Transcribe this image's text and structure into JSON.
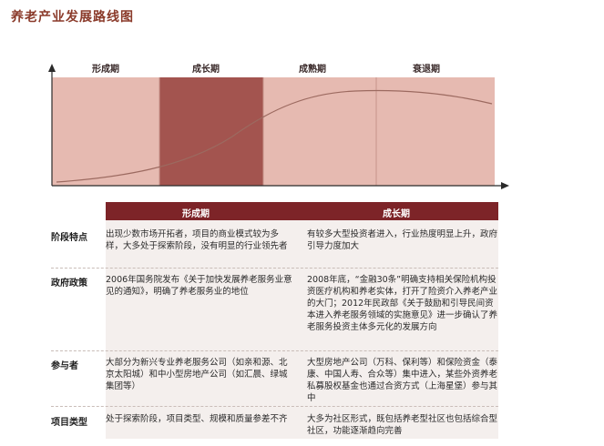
{
  "title": "养老产业发展路线图",
  "stages": [
    "形成期",
    "成长期",
    "成熟期",
    "衰退期"
  ],
  "colors": {
    "band_light": "#e6bab1",
    "band_dark": "#a3544f",
    "header": "#7d2428",
    "curve": "#9c6a60"
  },
  "table": {
    "columns": [
      "形成期",
      "成长期"
    ],
    "rows": [
      {
        "label": "阶段特点",
        "cells": [
          "出现少数市场开拓者，项目的商业模式较为多样，大多处于探索阶段，没有明显的行业领先者",
          "有较多大型投资者进入，行业热度明显上升，政府引导力度加大"
        ]
      },
      {
        "label": "政府政策",
        "cells": [
          "2006年国务院发布《关于加快发展养老服务业意见的通知》，明确了养老服务业的地位",
          "2008年底，“金融30条”明确支持相关保险机构投资医疗机构和养老实体，打开了险资介入养老产业的大门；2012年民政部《关于鼓励和引导民间资本进入养老服务领域的实施意见》进一步确认了养老服务投资主体多元化的发展方向"
        ]
      },
      {
        "label": "参与者",
        "cells": [
          "大部分为新兴专业养老服务公司（如亲和源、北京太阳城）和中小型房地产公司（如汇晨、绿城集团等）",
          "大型房地产公司（万科、保利等）和保险资金（泰康、中国人寿、合众等）集中进入，某些外资养老私募股权基金也通过合资方式（上海星堡）参与其中"
        ]
      },
      {
        "label": "项目类型",
        "cells": [
          "处于探索阶段，项目类型、规模和质量参差不齐",
          "大多为社区形式，既包括养老型社区也包括综合型社区，功能逐渐趋向完善"
        ]
      }
    ]
  }
}
